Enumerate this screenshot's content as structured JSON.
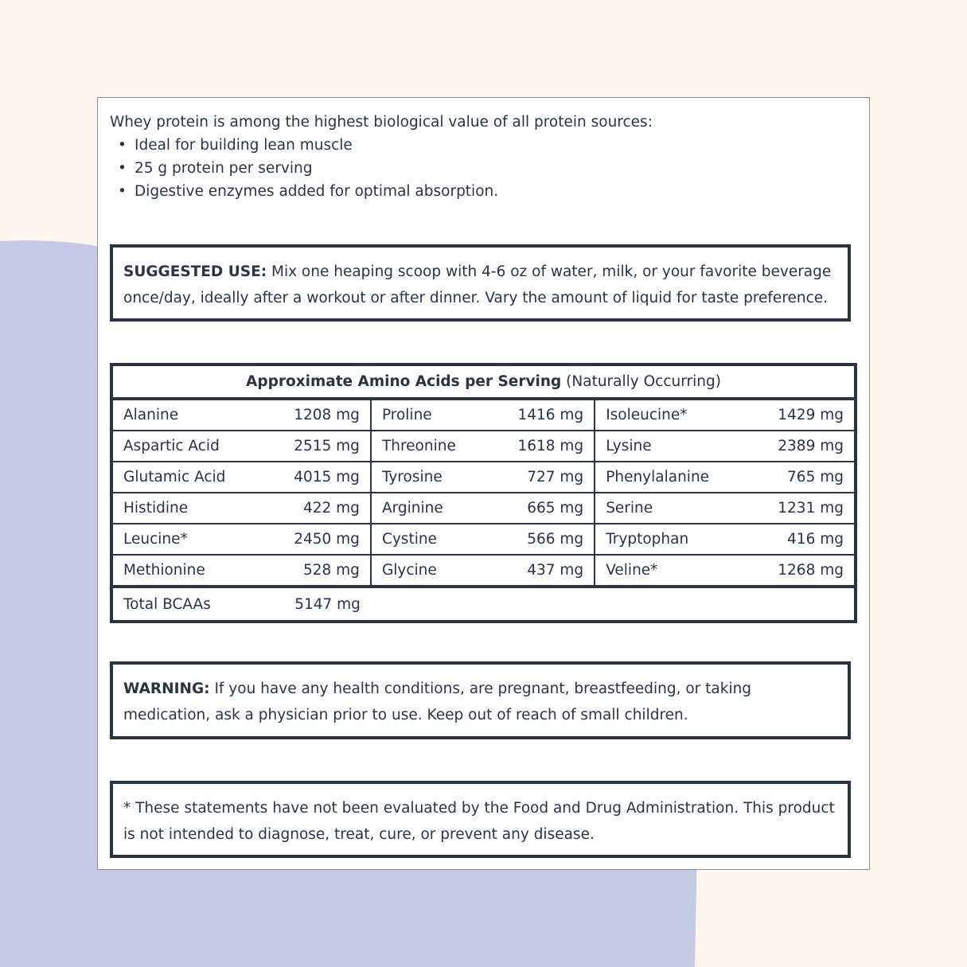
{
  "colors": {
    "background": "#fdf6ee",
    "blob": "#c6cae6",
    "border": "#2b3445",
    "text": "#2b3445"
  },
  "intro": {
    "lead": "Whey protein is among the highest biological value of all protein sources:",
    "bullets": [
      "Ideal for building lean muscle",
      "25 g protein per serving",
      "Digestive enzymes added for optimal absorption."
    ]
  },
  "suggested": {
    "label": "SUGGESTED USE:",
    "text": " Mix one heaping scoop with 4-6 oz of water, milk, or your favorite beverage once/day, ideally after a workout or after dinner. Vary the amount of liquid for taste preference."
  },
  "amino": {
    "title": "Approximate Amino Acids per Serving",
    "subtitle": " (Naturally Occurring)",
    "rows": [
      [
        [
          "Alanine",
          "1208 mg"
        ],
        [
          "Proline",
          "1416 mg"
        ],
        [
          "Isoleucine*",
          "1429 mg"
        ]
      ],
      [
        [
          "Aspartic Acid",
          "2515 mg"
        ],
        [
          "Threonine",
          "1618 mg"
        ],
        [
          "Lysine",
          "2389 mg"
        ]
      ],
      [
        [
          "Glutamic Acid",
          "4015 mg"
        ],
        [
          "Tyrosine",
          "727 mg"
        ],
        [
          "Phenylalanine",
          "765 mg"
        ]
      ],
      [
        [
          "Histidine",
          "422 mg"
        ],
        [
          "Arginine",
          "665 mg"
        ],
        [
          "Serine",
          "1231 mg"
        ]
      ],
      [
        [
          "Leucine*",
          "2450 mg"
        ],
        [
          "Cystine",
          "566 mg"
        ],
        [
          "Tryptophan",
          "416 mg"
        ]
      ],
      [
        [
          "Methionine",
          "528 mg"
        ],
        [
          "Glycine",
          "437 mg"
        ],
        [
          "Veline*",
          "1268 mg"
        ]
      ]
    ],
    "total": {
      "label": "Total BCAAs",
      "value": "5147 mg"
    }
  },
  "warning": {
    "label": "WARNING:",
    "text": " If you have any health conditions, are pregnant, breastfeeding, or taking medication, ask a physician prior to use. Keep out of reach of small children."
  },
  "disclaimer": {
    "text": "* These statements have not been evaluated by the Food and Drug Administration. This product is not intended to diagnose, treat, cure, or prevent any disease."
  }
}
